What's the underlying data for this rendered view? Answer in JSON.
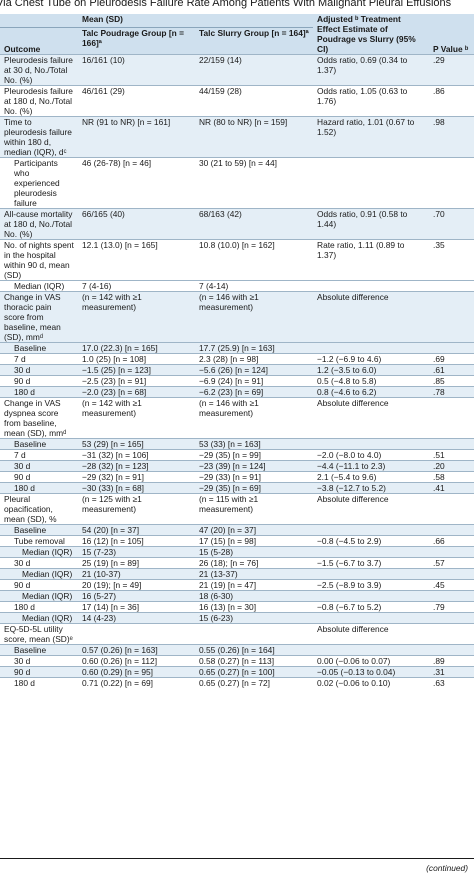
{
  "title": "Via Chest Tube on Pleurodesis Failure Rate Among Patients With Malignant Pleural Effusions",
  "header": {
    "outcome": "Outcome",
    "mean_sd": "Mean (SD)",
    "poudrage": "Talc Poudrage Group [n = 166]ª",
    "slurry": "Talc Slurry Group [n = 164]ª",
    "effect": "Adjusted ᵇ Treatment Effect Estimate of Poudrage vs Slurry (95% CI)",
    "p": "P Value ᵇ"
  },
  "rows": [
    {
      "o": "Pleurodesis failure at 30 d, No./Total No. (%)",
      "a": "16/161 (10)",
      "b": "22/159 (14)",
      "e": "Odds ratio, 0.69 (0.34 to 1.37)",
      "p": ".29",
      "lvl": 0,
      "shade": true
    },
    {
      "o": "Pleurodesis failure at 180 d, No./Total No. (%)",
      "a": "46/161 (29)",
      "b": "44/159 (28)",
      "e": "Odds ratio, 1.05 (0.63 to 1.76)",
      "p": ".86",
      "lvl": 0,
      "shade": false
    },
    {
      "o": "Time to pleurodesis failure within 180 d, median (IQR), dᶜ",
      "a": "NR (91 to NR) [n = 161]",
      "b": "NR (80 to NR) [n = 159]",
      "e": "Hazard ratio, 1.01 (0.67 to 1.52)",
      "p": ".98",
      "lvl": 0,
      "shade": true
    },
    {
      "o": "Participants who experienced pleurodesis failure",
      "a": "46 (26-78) [n = 46]",
      "b": "30 (21 to 59) [n = 44]",
      "e": "",
      "p": "",
      "lvl": 1,
      "shade": false
    },
    {
      "o": "All-cause mortality at 180 d, No./Total No. (%)",
      "a": "66/165 (40)",
      "b": "68/163 (42)",
      "e": "Odds ratio, 0.91 (0.58 to 1.44)",
      "p": ".70",
      "lvl": 0,
      "shade": true
    },
    {
      "o": "No. of nights spent in the hospital within 90 d, mean (SD)",
      "a": "12.1 (13.0) [n = 165]",
      "b": "10.8 (10.0) [n = 162]",
      "e": "Rate ratio, 1.11 (0.89 to 1.37)",
      "p": ".35",
      "lvl": 0,
      "shade": false
    },
    {
      "o": "Median (IQR)",
      "a": "7 (4-16)",
      "b": "7 (4-14)",
      "e": "",
      "p": "",
      "lvl": 1,
      "shade": false
    },
    {
      "o": "Change in VAS thoracic pain score from baseline, mean (SD), mmᵈ",
      "a": "(n = 142 with ≥1 measurement)",
      "b": "(n = 146 with ≥1 measurement)",
      "e": "Absolute difference",
      "p": "",
      "lvl": 0,
      "shade": true
    },
    {
      "o": "Baseline",
      "a": "17.0 (22.3) [n = 165]",
      "b": "17.7 (25.9) [n = 163]",
      "e": "",
      "p": "",
      "lvl": 1,
      "shade": true
    },
    {
      "o": "7 d",
      "a": "1.0 (25) [n = 108]",
      "b": "2.3 (28) [n = 98]",
      "e": "−1.2 (−6.9 to 4.6)",
      "p": ".69",
      "lvl": 1,
      "shade": false
    },
    {
      "o": "30 d",
      "a": "−1.5 (25) [n = 123]",
      "b": "−5.6 (26) [n = 124]",
      "e": "1.2 (−3.5 to 6.0)",
      "p": ".61",
      "lvl": 1,
      "shade": true
    },
    {
      "o": "90 d",
      "a": "−2.5 (23) [n = 91]",
      "b": "−6.9 (24) [n = 91]",
      "e": "0.5 (−4.8 to 5.8)",
      "p": ".85",
      "lvl": 1,
      "shade": false
    },
    {
      "o": "180 d",
      "a": "−2.0 (23) [n = 68]",
      "b": "−6.2 (23) [n = 69]",
      "e": "0.8 (−4.6 to 6.2)",
      "p": ".78",
      "lvl": 1,
      "shade": true
    },
    {
      "o": "Change in VAS dyspnea score from baseline, mean (SD), mmᵈ",
      "a": "(n = 142 with ≥1 measurement)",
      "b": "(n = 146 with ≥1 measurement)",
      "e": "Absolute difference",
      "p": "",
      "lvl": 0,
      "shade": false
    },
    {
      "o": "Baseline",
      "a": "53 (29) [n = 165]",
      "b": "53 (33) [n = 163]",
      "e": "",
      "p": "",
      "lvl": 1,
      "shade": true
    },
    {
      "o": "7 d",
      "a": "−31 (32) [n = 106]",
      "b": "−29 (35) [n = 99]",
      "e": "−2.0 (−8.0 to 4.0)",
      "p": ".51",
      "lvl": 1,
      "shade": false
    },
    {
      "o": "30 d",
      "a": "−28 (32) [n = 123]",
      "b": "−23 (39) [n = 124]",
      "e": "−4.4 (−11.1 to 2.3)",
      "p": ".20",
      "lvl": 1,
      "shade": true
    },
    {
      "o": "90 d",
      "a": "−29 (32) [n = 91]",
      "b": "−29 (33) [n = 91]",
      "e": "2.1 (−5.4 to 9.6)",
      "p": ".58",
      "lvl": 1,
      "shade": false
    },
    {
      "o": "180 d",
      "a": "−30 (33) [n = 68]",
      "b": "−29 (35) [n = 69]",
      "e": "−3.8 (−12.7 to 5.2)",
      "p": ".41",
      "lvl": 1,
      "shade": true
    },
    {
      "o": "Pleural opacification, mean (SD), %",
      "a": "(n = 125 with ≥1 measurement)",
      "b": "(n = 115 with ≥1 measurement)",
      "e": "Absolute difference",
      "p": "",
      "lvl": 0,
      "shade": false
    },
    {
      "o": "Baseline",
      "a": "54 (20) [n = 37]",
      "b": "47 (20) [n = 37]",
      "e": "",
      "p": "",
      "lvl": 1,
      "shade": true
    },
    {
      "o": "Tube removal",
      "a": "16 (12) [n = 105]",
      "b": "17 (15) [n = 98]",
      "e": "−0.8 (−4.5 to 2.9)",
      "p": ".66",
      "lvl": 1,
      "shade": false
    },
    {
      "o": "Median (IQR)",
      "a": "15 (7-23)",
      "b": "15 (5-28)",
      "e": "",
      "p": "",
      "lvl": 2,
      "shade": true
    },
    {
      "o": "30 d",
      "a": "25 (19) [n = 89]",
      "b": "26 (18); [n = 76]",
      "e": "−1.5 (−6.7 to 3.7)",
      "p": ".57",
      "lvl": 1,
      "shade": false
    },
    {
      "o": "Median (IQR)",
      "a": "21 (10-37)",
      "b": "21 (13-37)",
      "e": "",
      "p": "",
      "lvl": 2,
      "shade": true
    },
    {
      "o": "90 d",
      "a": "20 (19); [n = 49]",
      "b": "21 (19) [n = 47]",
      "e": "−2.5 (−8.9 to 3.9)",
      "p": ".45",
      "lvl": 1,
      "shade": false
    },
    {
      "o": "Median (IQR)",
      "a": "16 (5-27)",
      "b": "18 (6-30)",
      "e": "",
      "p": "",
      "lvl": 2,
      "shade": true
    },
    {
      "o": "180 d",
      "a": "17 (14) [n = 36]",
      "b": "16 (13) [n = 30]",
      "e": "−0.8 (−6.7 to 5.2)",
      "p": ".79",
      "lvl": 1,
      "shade": false
    },
    {
      "o": "Median (IQR)",
      "a": "14 (4-23)",
      "b": "15 (6-23)",
      "e": "",
      "p": "",
      "lvl": 2,
      "shade": true
    },
    {
      "o": "EQ-5D-5L utility score, mean (SD)ᵉ",
      "a": "",
      "b": "",
      "e": "Absolute difference",
      "p": "",
      "lvl": 0,
      "shade": false
    },
    {
      "o": "Baseline",
      "a": "0.57 (0.26) [n = 163]",
      "b": "0.55 (0.26) [n = 164]",
      "e": "",
      "p": "",
      "lvl": 1,
      "shade": true
    },
    {
      "o": "30 d",
      "a": "0.60 (0.26) [n = 112]",
      "b": "0.58 (0.27) [n = 113]",
      "e": "0.00 (−0.06 to 0.07)",
      "p": ".89",
      "lvl": 1,
      "shade": false
    },
    {
      "o": "90 d",
      "a": "0.60 (0.29) [n = 95]",
      "b": "0.65 (0.27) [n = 100]",
      "e": "−0.05 (−0.13 to 0.04)",
      "p": ".31",
      "lvl": 1,
      "shade": true
    },
    {
      "o": "180 d",
      "a": "0.71 (0.22) [n = 69]",
      "b": "0.65 (0.27) [n = 72]",
      "e": "0.02 (−0.06 to 0.10)",
      "p": ".63",
      "lvl": 1,
      "shade": false
    }
  ],
  "continued": "(continued)"
}
